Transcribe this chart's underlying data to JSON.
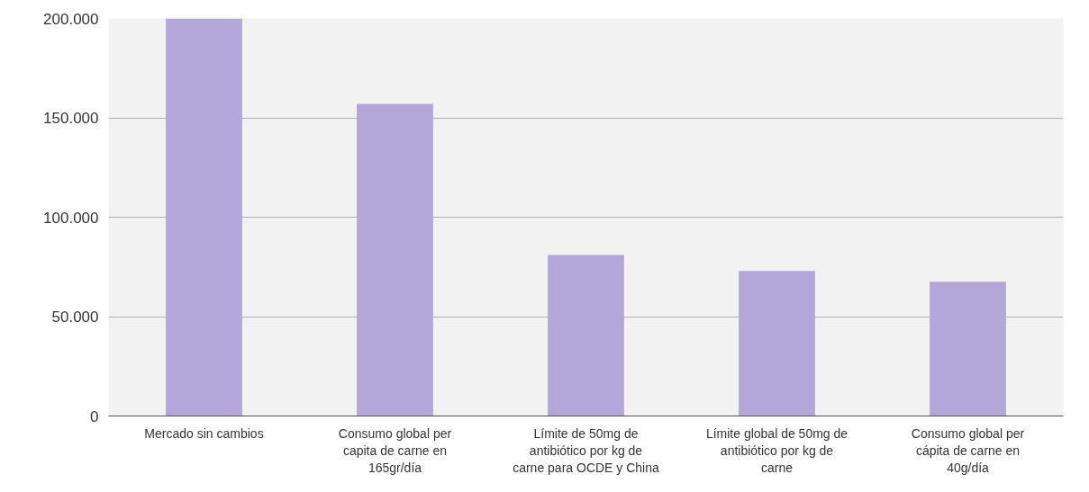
{
  "chart_data": {
    "type": "bar",
    "categories": [
      "Mercado sin cambios",
      "Consumo global per capita de carne en 165gr/día",
      "Límite de 50mg de antibiótico por kg de carne para OCDE y China",
      "Límite global de 50mg de antibiótico por kg de carne",
      "Consumo global per cápita de carne en 40g/día"
    ],
    "values": [
      200000,
      157000,
      81000,
      73000,
      67500
    ],
    "color": "#b3a7d7",
    "ylim": [
      0,
      200000
    ],
    "yticks": [
      0,
      {
        "value": 50000,
        "label": "50.000"
      },
      {
        "value": 100000,
        "label": "100.000"
      },
      {
        "value": 150000,
        "label": "150.000"
      },
      {
        "value": 200000,
        "label": "200.000"
      }
    ],
    "grid": "y"
  }
}
